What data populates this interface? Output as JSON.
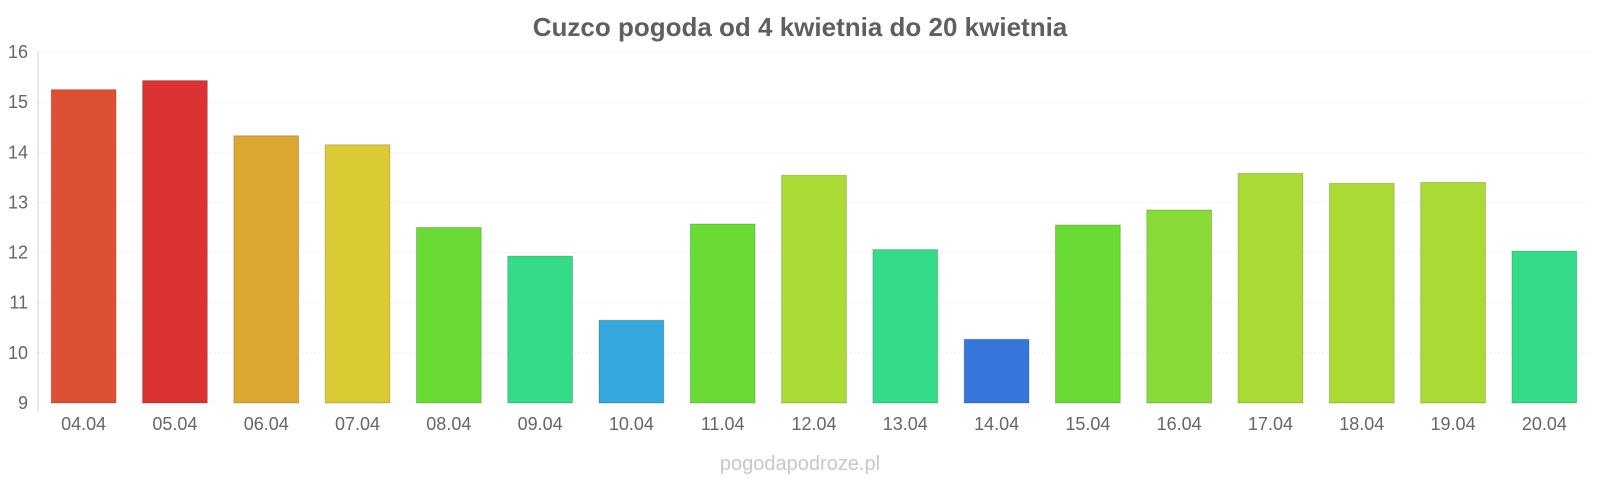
{
  "chart_data": {
    "type": "bar",
    "title": "Cuzco pogoda od 4 kwietnia do 20 kwietnia",
    "categories": [
      "04.04",
      "05.04",
      "06.04",
      "07.04",
      "08.04",
      "09.04",
      "10.04",
      "11.04",
      "12.04",
      "13.04",
      "14.04",
      "15.04",
      "16.04",
      "17.04",
      "18.04",
      "19.04",
      "20.04"
    ],
    "values": [
      15.25,
      15.43,
      14.33,
      14.15,
      12.5,
      11.93,
      10.65,
      12.57,
      13.54,
      12.06,
      10.27,
      12.55,
      12.85,
      13.58,
      13.38,
      13.4,
      12.03
    ],
    "colors": [
      "#dd5034",
      "#dc3233",
      "#dca731",
      "#dacb34",
      "#69db34",
      "#34db89",
      "#34a7dc",
      "#69db34",
      "#a9db34",
      "#34db89",
      "#3476dc",
      "#69db34",
      "#88db34",
      "#a9db34",
      "#a9db34",
      "#a9db34",
      "#34db89"
    ],
    "ylim": [
      9,
      16
    ],
    "yticks": [
      9,
      10,
      11,
      12,
      13,
      14,
      15,
      16
    ],
    "grid": true,
    "xlabel": "",
    "ylabel": ""
  },
  "footer": "pogodapodroze.pl"
}
